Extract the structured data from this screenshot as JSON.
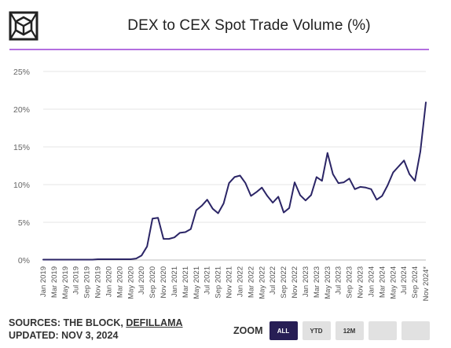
{
  "title": "DEX to CEX Spot Trade Volume (%)",
  "logo_icon": "cube-logo-icon",
  "footer": {
    "sources_prefix": "SOURCES: THE BLOCK, ",
    "sources_link": "DEFILLAMA",
    "updated": "UPDATED: NOV 3, 2024"
  },
  "zoom": {
    "label": "ZOOM",
    "buttons": [
      {
        "label": "ALL",
        "active": true
      },
      {
        "label": "YTD",
        "active": false
      },
      {
        "label": "12M",
        "active": false
      },
      {
        "label": "",
        "active": false
      },
      {
        "label": "",
        "active": false
      }
    ]
  },
  "colors": {
    "line": "#2b2566",
    "accent_rule": "#b36fe0",
    "active_button": "#271e55"
  },
  "chart_data": {
    "type": "line",
    "title": "DEX to CEX Spot Trade Volume (%)",
    "xlabel": "",
    "ylabel": "",
    "ylim": [
      0,
      25
    ],
    "yticks": [
      "0%",
      "5%",
      "10%",
      "15%",
      "20%",
      "25%"
    ],
    "grid": "horizontal",
    "xticks": [
      "Jan 2019",
      "Mar 2019",
      "May 2019",
      "Jul 2019",
      "Sep 2019",
      "Nov 2019",
      "Jan 2020",
      "Mar 2020",
      "May 2020",
      "Jul 2020",
      "Sep 2020",
      "Nov 2020",
      "Jan 2021",
      "Mar 2021",
      "May 2021",
      "Jul 2021",
      "Sep 2021",
      "Nov 2021",
      "Jan 2022",
      "Mar 2022",
      "May 2022",
      "Jul 2022",
      "Sep 2022",
      "Nov 2022",
      "Jan 2023",
      "Mar 2023",
      "May 2023",
      "Jul 2023",
      "Sep 2023",
      "Nov 2023",
      "Jan 2024",
      "Mar 2024",
      "May 2024",
      "Jul 2024",
      "Sep 2024",
      "Nov 2024*"
    ],
    "x": [
      "Jan 2019",
      "Feb 2019",
      "Mar 2019",
      "Apr 2019",
      "May 2019",
      "Jun 2019",
      "Jul 2019",
      "Aug 2019",
      "Sep 2019",
      "Oct 2019",
      "Nov 2019",
      "Dec 2019",
      "Jan 2020",
      "Feb 2020",
      "Mar 2020",
      "Apr 2020",
      "May 2020",
      "Jun 2020",
      "Jul 2020",
      "Aug 2020",
      "Sep 2020",
      "Oct 2020",
      "Nov 2020",
      "Dec 2020",
      "Jan 2021",
      "Feb 2021",
      "Mar 2021",
      "Apr 2021",
      "May 2021",
      "Jun 2021",
      "Jul 2021",
      "Aug 2021",
      "Sep 2021",
      "Oct 2021",
      "Nov 2021",
      "Dec 2021",
      "Jan 2022",
      "Feb 2022",
      "Mar 2022",
      "Apr 2022",
      "May 2022",
      "Jun 2022",
      "Jul 2022",
      "Aug 2022",
      "Sep 2022",
      "Oct 2022",
      "Nov 2022",
      "Dec 2022",
      "Jan 2023",
      "Feb 2023",
      "Mar 2023",
      "Apr 2023",
      "May 2023",
      "Jun 2023",
      "Jul 2023",
      "Aug 2023",
      "Sep 2023",
      "Oct 2023",
      "Nov 2023",
      "Dec 2023",
      "Jan 2024",
      "Feb 2024",
      "Mar 2024",
      "Apr 2024",
      "May 2024",
      "Jun 2024",
      "Jul 2024",
      "Aug 2024",
      "Sep 2024",
      "Oct 2024",
      "Nov 2024"
    ],
    "series": [
      {
        "values": [
          0.05,
          0.05,
          0.05,
          0.05,
          0.05,
          0.05,
          0.05,
          0.05,
          0.05,
          0.05,
          0.1,
          0.1,
          0.1,
          0.1,
          0.1,
          0.1,
          0.1,
          0.2,
          0.6,
          1.8,
          5.5,
          5.6,
          2.8,
          2.8,
          3.0,
          3.6,
          3.7,
          4.1,
          6.6,
          7.2,
          8.0,
          6.8,
          6.2,
          7.5,
          10.2,
          11.0,
          11.2,
          10.2,
          8.5,
          9.0,
          9.6,
          8.5,
          7.6,
          8.4,
          6.3,
          6.9,
          10.3,
          8.6,
          7.9,
          8.6,
          11.0,
          10.5,
          14.2,
          11.4,
          10.2,
          10.3,
          10.8,
          9.4,
          9.7,
          9.6,
          9.4,
          8.0,
          8.5,
          9.9,
          11.6,
          12.4,
          13.2,
          11.4,
          10.5,
          14.4,
          20.9
        ]
      }
    ]
  }
}
